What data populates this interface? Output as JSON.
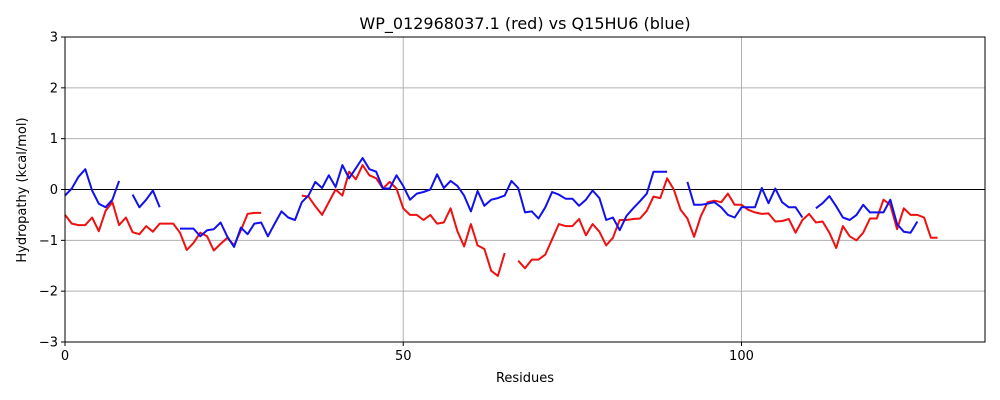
{
  "chart_data": {
    "type": "line",
    "title": "WP_012968037.1 (red) vs Q15HU6 (blue)",
    "xlabel": "Residues",
    "ylabel": "Hydropathy (kcal/mol)",
    "xlim": [
      0,
      136
    ],
    "ylim": [
      -3,
      3
    ],
    "x_ticks": [
      0,
      50,
      100
    ],
    "y_ticks": [
      -3,
      -2,
      -1,
      0,
      1,
      2,
      3
    ],
    "grid": true,
    "zero_line": true,
    "colors": {
      "red": "#ee1111",
      "blue": "#1111ee",
      "grid": "#b0b0b0",
      "zero": "#000000"
    },
    "series": [
      {
        "color_key": "red",
        "segments": [
          [
            [
              0,
              -0.5
            ],
            [
              1,
              -0.67
            ],
            [
              2,
              -0.7
            ],
            [
              3,
              -0.7
            ],
            [
              4,
              -0.55
            ],
            [
              5,
              -0.82
            ],
            [
              6,
              -0.42
            ],
            [
              7,
              -0.25
            ],
            [
              8,
              -0.7
            ],
            [
              9,
              -0.55
            ],
            [
              10,
              -0.84
            ],
            [
              11,
              -0.88
            ],
            [
              12,
              -0.72
            ],
            [
              13,
              -0.83
            ],
            [
              14,
              -0.67
            ],
            [
              15,
              -0.67
            ],
            [
              16,
              -0.67
            ],
            [
              17,
              -0.85
            ],
            [
              18,
              -1.19
            ],
            [
              19,
              -1.05
            ],
            [
              20,
              -0.85
            ],
            [
              21,
              -0.92
            ],
            [
              22,
              -1.2
            ],
            [
              23,
              -1.07
            ],
            [
              24,
              -0.95
            ],
            [
              25,
              -1.1
            ],
            [
              26,
              -0.8
            ],
            [
              27,
              -0.48
            ],
            [
              28,
              -0.46
            ],
            [
              29,
              -0.46
            ]
          ],
          [
            [
              35,
              -0.12
            ],
            [
              36,
              -0.14
            ],
            [
              37,
              -0.33
            ],
            [
              38,
              -0.5
            ],
            [
              39,
              -0.25
            ],
            [
              40,
              0.0
            ],
            [
              41,
              -0.12
            ],
            [
              42,
              0.35
            ],
            [
              43,
              0.2
            ],
            [
              44,
              0.48
            ],
            [
              45,
              0.28
            ],
            [
              46,
              0.22
            ],
            [
              47,
              0.02
            ],
            [
              48,
              0.15
            ],
            [
              49,
              0.02
            ],
            [
              50,
              -0.37
            ],
            [
              51,
              -0.5
            ],
            [
              52,
              -0.5
            ],
            [
              53,
              -0.6
            ],
            [
              54,
              -0.5
            ],
            [
              55,
              -0.67
            ],
            [
              56,
              -0.65
            ],
            [
              57,
              -0.37
            ],
            [
              58,
              -0.82
            ],
            [
              59,
              -1.12
            ],
            [
              60,
              -0.68
            ],
            [
              61,
              -1.1
            ],
            [
              62,
              -1.17
            ],
            [
              63,
              -1.6
            ],
            [
              64,
              -1.7
            ],
            [
              65,
              -1.25
            ]
          ],
          [
            [
              67,
              -1.4
            ],
            [
              68,
              -1.55
            ],
            [
              69,
              -1.38
            ],
            [
              70,
              -1.38
            ],
            [
              71,
              -1.28
            ],
            [
              72,
              -0.98
            ],
            [
              73,
              -0.68
            ],
            [
              74,
              -0.72
            ],
            [
              75,
              -0.72
            ],
            [
              76,
              -0.58
            ],
            [
              77,
              -0.9
            ],
            [
              78,
              -0.68
            ],
            [
              79,
              -0.83
            ],
            [
              80,
              -1.1
            ],
            [
              81,
              -0.95
            ],
            [
              82,
              -0.6
            ],
            [
              83,
              -0.6
            ],
            [
              84,
              -0.58
            ],
            [
              85,
              -0.57
            ],
            [
              86,
              -0.42
            ],
            [
              87,
              -0.14
            ],
            [
              88,
              -0.17
            ],
            [
              89,
              0.22
            ],
            [
              90,
              0.0
            ],
            [
              91,
              -0.4
            ],
            [
              92,
              -0.57
            ],
            [
              93,
              -0.93
            ],
            [
              94,
              -0.52
            ],
            [
              95,
              -0.25
            ],
            [
              96,
              -0.22
            ],
            [
              97,
              -0.25
            ],
            [
              98,
              -0.08
            ],
            [
              99,
              -0.3
            ],
            [
              100,
              -0.3
            ],
            [
              101,
              -0.4
            ],
            [
              102,
              -0.45
            ],
            [
              103,
              -0.48
            ],
            [
              104,
              -0.47
            ],
            [
              105,
              -0.63
            ],
            [
              106,
              -0.62
            ],
            [
              107,
              -0.58
            ],
            [
              108,
              -0.85
            ],
            [
              109,
              -0.6
            ],
            [
              110,
              -0.48
            ],
            [
              111,
              -0.65
            ],
            [
              112,
              -0.63
            ],
            [
              113,
              -0.85
            ],
            [
              114,
              -1.15
            ],
            [
              115,
              -0.72
            ],
            [
              116,
              -0.92
            ],
            [
              117,
              -1.0
            ],
            [
              118,
              -0.85
            ],
            [
              119,
              -0.57
            ],
            [
              120,
              -0.57
            ],
            [
              121,
              -0.2
            ],
            [
              122,
              -0.3
            ],
            [
              123,
              -0.78
            ],
            [
              124,
              -0.37
            ],
            [
              125,
              -0.5
            ],
            [
              126,
              -0.5
            ],
            [
              127,
              -0.55
            ],
            [
              128,
              -0.95
            ],
            [
              129,
              -0.95
            ]
          ]
        ]
      },
      {
        "color_key": "blue",
        "segments": [
          [
            [
              0,
              -0.12
            ],
            [
              1,
              0.02
            ],
            [
              2,
              0.25
            ],
            [
              3,
              0.4
            ],
            [
              4,
              -0.02
            ],
            [
              5,
              -0.28
            ],
            [
              6,
              -0.35
            ],
            [
              7,
              -0.2
            ],
            [
              8,
              0.17
            ]
          ],
          [
            [
              10,
              -0.1
            ],
            [
              11,
              -0.35
            ],
            [
              12,
              -0.2
            ],
            [
              13,
              -0.02
            ],
            [
              14,
              -0.35
            ]
          ],
          [
            [
              17,
              -0.77
            ],
            [
              18,
              -0.77
            ],
            [
              19,
              -0.77
            ],
            [
              20,
              -0.92
            ],
            [
              21,
              -0.8
            ],
            [
              22,
              -0.78
            ],
            [
              23,
              -0.65
            ],
            [
              24,
              -0.93
            ],
            [
              25,
              -1.13
            ],
            [
              26,
              -0.75
            ],
            [
              27,
              -0.88
            ],
            [
              28,
              -0.67
            ],
            [
              29,
              -0.65
            ],
            [
              30,
              -0.92
            ],
            [
              31,
              -0.67
            ],
            [
              32,
              -0.43
            ],
            [
              33,
              -0.55
            ],
            [
              34,
              -0.6
            ],
            [
              35,
              -0.25
            ],
            [
              36,
              -0.12
            ],
            [
              37,
              0.15
            ],
            [
              38,
              0.03
            ],
            [
              39,
              0.28
            ],
            [
              40,
              0.05
            ],
            [
              41,
              0.48
            ],
            [
              42,
              0.22
            ],
            [
              43,
              0.42
            ],
            [
              44,
              0.62
            ],
            [
              45,
              0.4
            ],
            [
              46,
              0.35
            ],
            [
              47,
              0.02
            ],
            [
              48,
              0.02
            ],
            [
              49,
              0.28
            ],
            [
              50,
              0.07
            ],
            [
              51,
              -0.2
            ],
            [
              52,
              -0.08
            ],
            [
              53,
              -0.05
            ],
            [
              54,
              0.0
            ],
            [
              55,
              0.3
            ],
            [
              56,
              0.03
            ],
            [
              57,
              0.17
            ],
            [
              58,
              0.07
            ],
            [
              59,
              -0.12
            ],
            [
              60,
              -0.43
            ],
            [
              61,
              -0.03
            ],
            [
              62,
              -0.32
            ],
            [
              63,
              -0.2
            ],
            [
              64,
              -0.17
            ],
            [
              65,
              -0.12
            ],
            [
              66,
              0.17
            ],
            [
              67,
              0.03
            ],
            [
              68,
              -0.45
            ],
            [
              69,
              -0.43
            ],
            [
              70,
              -0.57
            ],
            [
              71,
              -0.35
            ],
            [
              72,
              -0.05
            ],
            [
              73,
              -0.1
            ],
            [
              74,
              -0.18
            ],
            [
              75,
              -0.18
            ],
            [
              76,
              -0.32
            ],
            [
              77,
              -0.2
            ],
            [
              78,
              -0.02
            ],
            [
              79,
              -0.17
            ],
            [
              80,
              -0.6
            ],
            [
              81,
              -0.55
            ],
            [
              82,
              -0.8
            ],
            [
              83,
              -0.52
            ],
            [
              84,
              -0.37
            ],
            [
              85,
              -0.23
            ],
            [
              86,
              -0.08
            ],
            [
              87,
              0.35
            ],
            [
              88,
              0.35
            ],
            [
              89,
              0.35
            ]
          ],
          [
            [
              92,
              0.15
            ],
            [
              93,
              -0.3
            ],
            [
              94,
              -0.3
            ],
            [
              95,
              -0.28
            ],
            [
              96,
              -0.25
            ],
            [
              97,
              -0.35
            ],
            [
              98,
              -0.5
            ],
            [
              99,
              -0.55
            ],
            [
              100,
              -0.35
            ],
            [
              101,
              -0.35
            ],
            [
              102,
              -0.35
            ],
            [
              103,
              0.03
            ],
            [
              104,
              -0.27
            ],
            [
              105,
              0.02
            ],
            [
              106,
              -0.25
            ],
            [
              107,
              -0.35
            ],
            [
              108,
              -0.35
            ],
            [
              109,
              -0.55
            ]
          ],
          [
            [
              111,
              -0.37
            ],
            [
              112,
              -0.27
            ],
            [
              113,
              -0.13
            ],
            [
              114,
              -0.33
            ],
            [
              115,
              -0.55
            ],
            [
              116,
              -0.6
            ],
            [
              117,
              -0.5
            ],
            [
              118,
              -0.3
            ],
            [
              119,
              -0.45
            ],
            [
              120,
              -0.45
            ],
            [
              121,
              -0.45
            ],
            [
              122,
              -0.2
            ],
            [
              123,
              -0.68
            ],
            [
              124,
              -0.83
            ],
            [
              125,
              -0.85
            ],
            [
              126,
              -0.63
            ]
          ]
        ]
      }
    ]
  }
}
